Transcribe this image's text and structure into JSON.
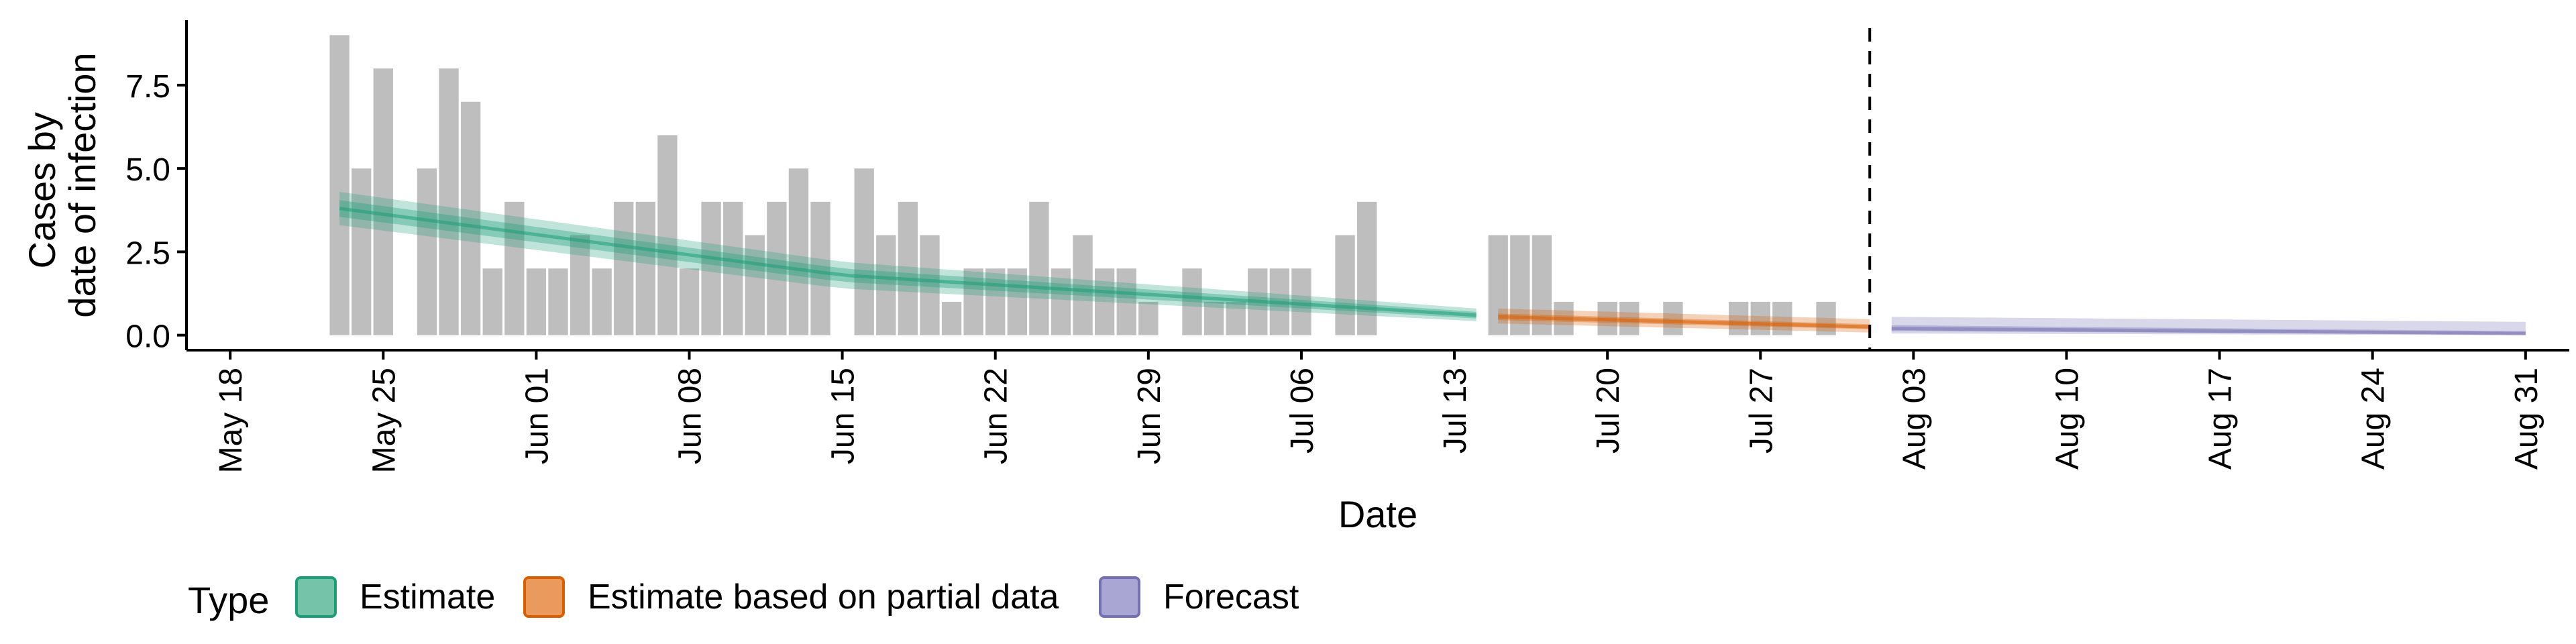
{
  "chart_data": {
    "type": "bar",
    "title": "",
    "xlabel": "Date",
    "ylabel": [
      "Cases by",
      "date of infection"
    ],
    "ylim": [
      -0.45,
      9.45
    ],
    "xlim": [
      "2020-05-16",
      "2020-09-02"
    ],
    "yticks": [
      0.0,
      2.5,
      5.0,
      7.5
    ],
    "ytick_labels": [
      "0.0",
      "2.5",
      "5.0",
      "7.5"
    ],
    "xticks": [
      "2020-05-18",
      "2020-05-25",
      "2020-06-01",
      "2020-06-08",
      "2020-06-15",
      "2020-06-22",
      "2020-06-29",
      "2020-07-06",
      "2020-07-13",
      "2020-07-20",
      "2020-07-27",
      "2020-08-03",
      "2020-08-10",
      "2020-08-17",
      "2020-08-24",
      "2020-08-31"
    ],
    "xtick_labels": [
      "May 18",
      "May 25",
      "Jun 01",
      "Jun 08",
      "Jun 15",
      "Jun 22",
      "Jun 29",
      "Jul 06",
      "Jul 13",
      "Jul 20",
      "Jul 27",
      "Aug 03",
      "Aug 10",
      "Aug 17",
      "Aug 24",
      "Aug 31"
    ],
    "vline_date": "2020-08-01",
    "grid": false,
    "legend_position": "bottom",
    "bars": {
      "color": "#bebebe",
      "dates": [
        "2020-05-23",
        "2020-05-24",
        "2020-05-25",
        "2020-05-26",
        "2020-05-27",
        "2020-05-28",
        "2020-05-29",
        "2020-05-30",
        "2020-05-31",
        "2020-06-01",
        "2020-06-02",
        "2020-06-03",
        "2020-06-04",
        "2020-06-05",
        "2020-06-06",
        "2020-06-07",
        "2020-06-08",
        "2020-06-09",
        "2020-06-10",
        "2020-06-11",
        "2020-06-12",
        "2020-06-13",
        "2020-06-14",
        "2020-06-15",
        "2020-06-16",
        "2020-06-17",
        "2020-06-18",
        "2020-06-19",
        "2020-06-20",
        "2020-06-21",
        "2020-06-22",
        "2020-06-23",
        "2020-06-24",
        "2020-06-25",
        "2020-06-26",
        "2020-06-27",
        "2020-06-28",
        "2020-06-29",
        "2020-06-30",
        "2020-07-01",
        "2020-07-02",
        "2020-07-03",
        "2020-07-04",
        "2020-07-05",
        "2020-07-06",
        "2020-07-07",
        "2020-07-08",
        "2020-07-09",
        "2020-07-10",
        "2020-07-11",
        "2020-07-12",
        "2020-07-13",
        "2020-07-14",
        "2020-07-15",
        "2020-07-16",
        "2020-07-17",
        "2020-07-18",
        "2020-07-19",
        "2020-07-20",
        "2020-07-21",
        "2020-07-22",
        "2020-07-23",
        "2020-07-24",
        "2020-07-25",
        "2020-07-26",
        "2020-07-27",
        "2020-07-28",
        "2020-07-29",
        "2020-07-30",
        "2020-07-31"
      ],
      "values": [
        9,
        5,
        8,
        0,
        5,
        8,
        7,
        2,
        4,
        2,
        2,
        3,
        2,
        4,
        4,
        6,
        2,
        4,
        4,
        3,
        4,
        5,
        4,
        0,
        5,
        3,
        4,
        3,
        1,
        2,
        2,
        2,
        4,
        2,
        3,
        2,
        2,
        1,
        0,
        2,
        1,
        1,
        2,
        2,
        2,
        0,
        3,
        4,
        0,
        0,
        0,
        0,
        0,
        3,
        3,
        3,
        1,
        0,
        1,
        1,
        0,
        1,
        0,
        0,
        1,
        1,
        1,
        0,
        1,
        0
      ]
    },
    "series": [
      {
        "name": "Estimate",
        "color": "#1b9e77",
        "x": [
          "2020-05-23",
          "2020-06-15",
          "2020-07-14"
        ],
        "median": [
          3.8,
          1.8,
          0.6
        ],
        "inner": {
          "lower": [
            3.55,
            1.6,
            0.5
          ],
          "upper": [
            4.05,
            2.0,
            0.7
          ]
        },
        "outer": {
          "lower": [
            3.3,
            1.4,
            0.42
          ],
          "upper": [
            4.3,
            2.2,
            0.8
          ]
        }
      },
      {
        "name": "Estimate based on partial data",
        "color": "#d95f02",
        "x": [
          "2020-07-15",
          "2020-08-01"
        ],
        "median": [
          0.55,
          0.25
        ],
        "inner": {
          "lower": [
            0.45,
            0.18
          ],
          "upper": [
            0.65,
            0.33
          ]
        },
        "outer": {
          "lower": [
            0.35,
            0.08
          ],
          "upper": [
            0.8,
            0.48
          ]
        }
      },
      {
        "name": "Forecast",
        "color": "#7570b3",
        "x": [
          "2020-08-02",
          "2020-08-31"
        ],
        "median": [
          0.2,
          0.05
        ],
        "inner": {
          "lower": [
            0.12,
            0.02
          ],
          "upper": [
            0.3,
            0.12
          ]
        },
        "outer": {
          "lower": [
            0.05,
            0.0
          ],
          "upper": [
            0.55,
            0.4
          ]
        }
      }
    ]
  },
  "legend": {
    "title": "Type",
    "items": [
      {
        "label": "Estimate",
        "fill": "#75c3a9",
        "border": "#1b9e77"
      },
      {
        "label": "Estimate based on partial data",
        "fill": "#eb9a5e",
        "border": "#d95f02"
      },
      {
        "label": "Forecast",
        "fill": "#aaa6d3",
        "border": "#7570b3"
      }
    ]
  }
}
